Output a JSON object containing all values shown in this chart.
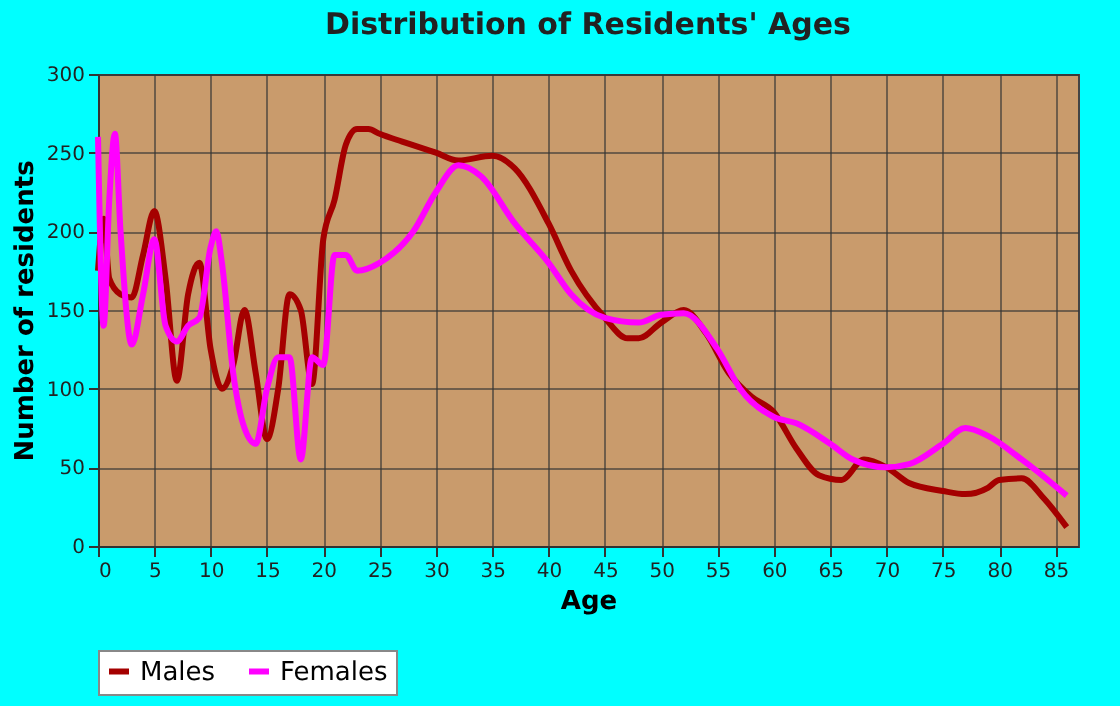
{
  "chart_data": {
    "type": "line",
    "title": "Distribution of Residents' Ages",
    "xlabel": "Age",
    "ylabel": "Number of residents",
    "xlim": [
      0,
      87
    ],
    "xticks": [
      0,
      5,
      10,
      15,
      20,
      25,
      30,
      35,
      40,
      45,
      50,
      55,
      60,
      65,
      70,
      75,
      80,
      85
    ],
    "ylim": [
      0,
      300
    ],
    "yticks": [
      0,
      50,
      100,
      150,
      200,
      250,
      300
    ],
    "grid": true,
    "legend": "bottom",
    "marker": "none",
    "series": [
      {
        "name": "Males",
        "color": "#a50000",
        "x": [
          0,
          0.5,
          1,
          2,
          3,
          4,
          5,
          6,
          7,
          8,
          9,
          10,
          11,
          12,
          13,
          14,
          15,
          16,
          17,
          18,
          19,
          20,
          21,
          22,
          23,
          24,
          25,
          27,
          30,
          32,
          35,
          37,
          40,
          42,
          45,
          47,
          48,
          50,
          52,
          54,
          56,
          58,
          60,
          62,
          64,
          66,
          68,
          70,
          72,
          75,
          77,
          79,
          80,
          82,
          84,
          86
        ],
        "values": [
          175,
          208,
          170,
          160,
          158,
          185,
          213,
          170,
          105,
          160,
          180,
          125,
          100,
          115,
          150,
          110,
          68,
          100,
          160,
          150,
          103,
          195,
          220,
          255,
          265,
          265,
          262,
          257,
          250,
          245,
          248,
          240,
          205,
          175,
          145,
          132,
          132,
          142,
          150,
          135,
          110,
          95,
          85,
          62,
          45,
          42,
          55,
          50,
          40,
          35,
          33,
          37,
          42,
          43,
          30,
          12
        ]
      },
      {
        "name": "Females",
        "color": "#ff00ff",
        "x": [
          0,
          0.5,
          1,
          1.5,
          2,
          3,
          4,
          5,
          6,
          7,
          8,
          9,
          10,
          10.5,
          11,
          12,
          13,
          14,
          15,
          16,
          17,
          18,
          19,
          20,
          21,
          22,
          23,
          25,
          28,
          30,
          32,
          34,
          37,
          40,
          42,
          45,
          48,
          50,
          52,
          55,
          57,
          60,
          62,
          65,
          67,
          70,
          72,
          75,
          77,
          79,
          82,
          85,
          86
        ],
        "values": [
          260,
          140,
          220,
          262,
          200,
          128,
          160,
          195,
          140,
          130,
          140,
          145,
          190,
          200,
          180,
          110,
          75,
          65,
          100,
          120,
          120,
          55,
          120,
          115,
          185,
          185,
          175,
          180,
          200,
          225,
          242,
          235,
          205,
          180,
          160,
          145,
          142,
          147,
          148,
          125,
          100,
          82,
          78,
          65,
          55,
          50,
          52,
          65,
          75,
          70,
          55,
          38,
          32
        ]
      }
    ]
  }
}
